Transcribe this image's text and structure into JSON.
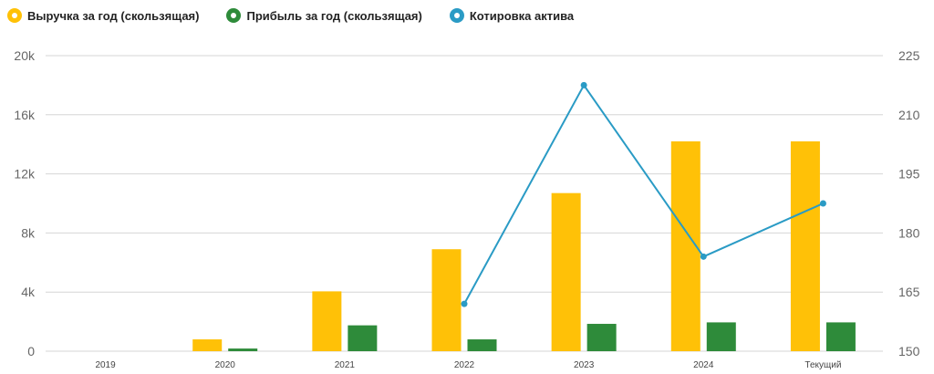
{
  "chart_data": {
    "type": "bar",
    "categories": [
      "2019",
      "2020",
      "2021",
      "2022",
      "2023",
      "2024",
      "Текущий"
    ],
    "y_left": {
      "ticks": [
        "0",
        "4k",
        "8k",
        "12k",
        "16k",
        "20k"
      ],
      "ylim": [
        0,
        20000
      ]
    },
    "y_right": {
      "ticks": [
        "150",
        "165",
        "180",
        "195",
        "210",
        "225"
      ],
      "ylim": [
        150,
        225
      ]
    },
    "series": [
      {
        "name": "Выручка за год (скользящая)",
        "kind": "bar",
        "axis": "left",
        "color": "#ffc107",
        "values": [
          0,
          800,
          4050,
          6900,
          10700,
          14200,
          14200
        ]
      },
      {
        "name": "Прибыль за год (скользящая)",
        "kind": "bar",
        "axis": "left",
        "color": "#2e8b3a",
        "values": [
          0,
          180,
          1750,
          800,
          1850,
          1950,
          1950
        ]
      },
      {
        "name": "Котировка актива",
        "kind": "line",
        "axis": "right",
        "color": "#2a9bc5",
        "values": [
          null,
          null,
          null,
          162,
          217.5,
          174,
          187.5
        ]
      }
    ],
    "grid": true,
    "legend": "top-left"
  }
}
